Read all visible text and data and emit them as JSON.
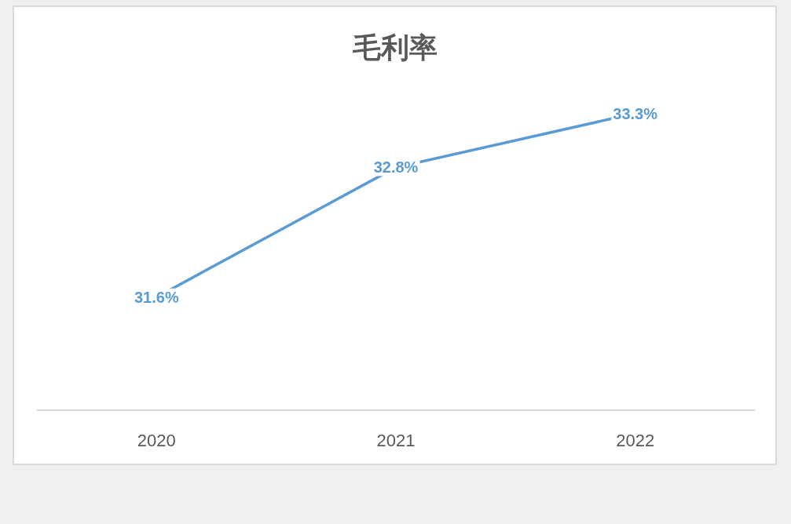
{
  "chart_data": {
    "type": "line",
    "title": "毛利率",
    "categories": [
      "2020",
      "2021",
      "2022"
    ],
    "series": [
      {
        "color": "#5b9bd5",
        "values": [
          31.6,
          32.8,
          33.3
        ],
        "value_labels": [
          "31.6%",
          "32.8%",
          "33.3%"
        ]
      }
    ]
  }
}
